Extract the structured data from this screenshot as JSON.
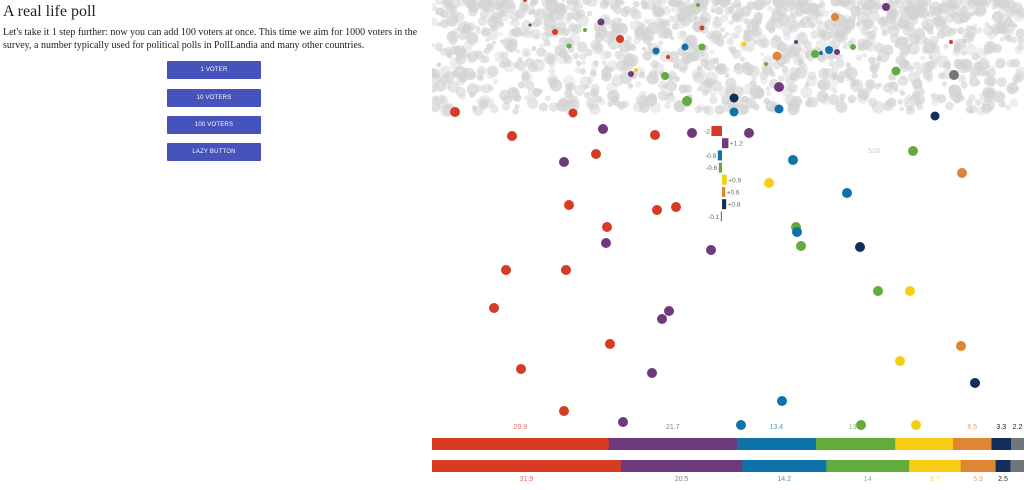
{
  "page": {
    "title": "A real life poll",
    "description": "Let's take it 1 step further: now you can add 100 voters at once. This time we aim for 1000 voters in the survey, a number typically used for political polls in PollLandia and many other countries."
  },
  "buttons": {
    "one_voter": "1 VOTER",
    "ten_voters": "10 VOTERS",
    "hundred_voters": "100 VOTERS",
    "lazy": "LAZY BUTTON"
  },
  "colors": {
    "red": "#d63c24",
    "purple": "#6f3a7d",
    "blue": "#0f73a9",
    "green": "#62ab3d",
    "yellow": "#f8cd15",
    "orange": "#df8534",
    "navy": "#132e58",
    "gray": "#71757c",
    "crowd": "#d3d3d3",
    "button": "#4653bd"
  },
  "counter_label": "510",
  "chart_data": {
    "type": "bar",
    "parties": [
      "red",
      "purple",
      "blue",
      "green",
      "yellow",
      "orange",
      "navy",
      "gray"
    ],
    "series": [
      {
        "values": [
          29.9,
          21.7,
          13.4,
          13.4,
          9.8,
          6.5,
          3.3,
          2.2
        ],
        "labels": [
          "29.9",
          "21.7",
          "13.4",
          "13.4",
          "",
          "6.5",
          "3.3",
          "2.2"
        ]
      },
      {
        "values": [
          31.9,
          20.5,
          14.2,
          14,
          8.7,
          5.9,
          2.5,
          2.3
        ],
        "labels": [
          "31.9",
          "20.5",
          "14.2",
          "14",
          "8.7",
          "5.9",
          "2.5",
          ""
        ]
      }
    ],
    "differences": [
      {
        "party": "red",
        "value": -2,
        "label": "-2"
      },
      {
        "party": "purple",
        "value": 1.2,
        "label": "+1.2"
      },
      {
        "party": "blue",
        "value": -0.8,
        "label": "-0.8"
      },
      {
        "party": "green",
        "value": -0.6,
        "label": "-0.6"
      },
      {
        "party": "yellow",
        "value": 0.9,
        "label": "+0.9"
      },
      {
        "party": "orange",
        "value": 0.6,
        "label": "+0.6"
      },
      {
        "party": "navy",
        "value": 0.8,
        "label": "+0.8"
      },
      {
        "party": "gray",
        "value": -0.1,
        "label": "-0.1"
      }
    ]
  }
}
